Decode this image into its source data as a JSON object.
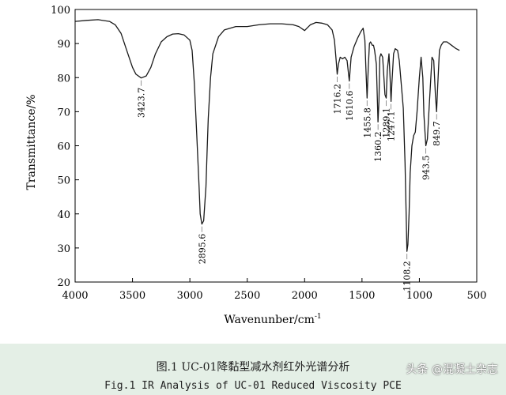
{
  "chart_data": {
    "type": "line",
    "xlabel": "Wavenunber/cm",
    "xlabel_sup": "-1",
    "ylabel": "Transmittance/%",
    "xlim": [
      4000,
      500
    ],
    "ylim": [
      20,
      100
    ],
    "xticks": [
      "4000",
      "3500",
      "3000",
      "2500",
      "2000",
      "1500",
      "1000",
      "500"
    ],
    "yticks": [
      "20",
      "30",
      "40",
      "50",
      "60",
      "70",
      "80",
      "90",
      "100"
    ],
    "grid": false,
    "series": [
      {
        "x": [
          4000,
          3900,
          3800,
          3700,
          3650,
          3600,
          3550,
          3500,
          3470,
          3423.7,
          3380,
          3340,
          3300,
          3250,
          3200,
          3150,
          3100,
          3050,
          3000,
          2980,
          2960,
          2940,
          2920,
          2910,
          2895.6,
          2880,
          2860,
          2850,
          2840,
          2820,
          2800,
          2750,
          2700,
          2600,
          2500,
          2400,
          2300,
          2200,
          2100,
          2050,
          2000,
          1980,
          1950,
          1900,
          1850,
          1800,
          1760,
          1740,
          1725,
          1716.2,
          1705,
          1690,
          1670,
          1650,
          1630,
          1610.6,
          1595,
          1570,
          1540,
          1510,
          1490,
          1475,
          1465,
          1455.8,
          1445,
          1435,
          1425,
          1410,
          1400,
          1390,
          1375,
          1368,
          1360.2,
          1352,
          1345,
          1335,
          1320,
          1300,
          1289.1,
          1280,
          1265,
          1255,
          1247.1,
          1240,
          1225,
          1210,
          1190,
          1175,
          1160,
          1140,
          1125,
          1115,
          1108.2,
          1100,
          1090,
          1080,
          1065,
          1050,
          1035,
          1020,
          1000,
          985,
          970,
          960,
          943.5,
          930,
          920,
          905,
          890,
          875,
          860,
          849.7,
          840,
          825,
          810,
          790,
          760,
          720,
          680,
          650
        ],
        "values": [
          96.5,
          96.8,
          97,
          96.5,
          95.5,
          93,
          88,
          83,
          81,
          79.9,
          80.5,
          83,
          87,
          90.5,
          92,
          92.8,
          92.9,
          92.5,
          91,
          88,
          78,
          63,
          48,
          40,
          37,
          38,
          48,
          58,
          68,
          80,
          87,
          92,
          94,
          95,
          95,
          95.5,
          95.8,
          95.8,
          95.5,
          95,
          93.8,
          94.5,
          95.5,
          96.2,
          96,
          95.5,
          94,
          91,
          85,
          81,
          84,
          86,
          85.5,
          86,
          85,
          79,
          86,
          89,
          91.5,
          93.5,
          94.5,
          91,
          82,
          74,
          83,
          90,
          90.5,
          89.5,
          89.5,
          88,
          84,
          76,
          67,
          73,
          86,
          87,
          86,
          75,
          74,
          82,
          87,
          80,
          73,
          78,
          87,
          88.5,
          88,
          85,
          79,
          71,
          55,
          40,
          29,
          31,
          40,
          52,
          60,
          63,
          64,
          70,
          80,
          86,
          80,
          69,
          60,
          62,
          68,
          77,
          86,
          85,
          75,
          70,
          78,
          88,
          89.5,
          90.5,
          90.5,
          89.5,
          88.5,
          88
        ]
      }
    ],
    "annotations": [
      {
        "x": 3423.7,
        "label": "3423.7",
        "anchor_y": 79.9
      },
      {
        "x": 2895.6,
        "label": "2895.6",
        "anchor_y": 37
      },
      {
        "x": 1716.2,
        "label": "1716.2",
        "anchor_y": 81
      },
      {
        "x": 1610.6,
        "label": "1610.6",
        "anchor_y": 79
      },
      {
        "x": 1455.8,
        "label": "1455.8",
        "anchor_y": 74
      },
      {
        "x": 1360.2,
        "label": "1360.2",
        "anchor_y": 67
      },
      {
        "x": 1289.1,
        "label": "1289.1",
        "anchor_y": 74
      },
      {
        "x": 1247.1,
        "label": "1247.1",
        "anchor_y": 73
      },
      {
        "x": 1108.2,
        "label": "1108.2",
        "anchor_y": 29
      },
      {
        "x": 943.5,
        "label": "943.5",
        "anchor_y": 60
      },
      {
        "x": 849.7,
        "label": "849.7",
        "anchor_y": 70
      }
    ]
  },
  "caption": {
    "cn": "图.1  UC-01降黏型减水剂红外光谱分析",
    "en": "Fig.1 IR Analysis of UC-01 Reduced Viscosity PCE"
  },
  "watermark": "头条 @混凝土杂志",
  "colors": {
    "line": "#1a1a1a",
    "axis": "#000000",
    "caption_bg": "#e4efe6"
  }
}
